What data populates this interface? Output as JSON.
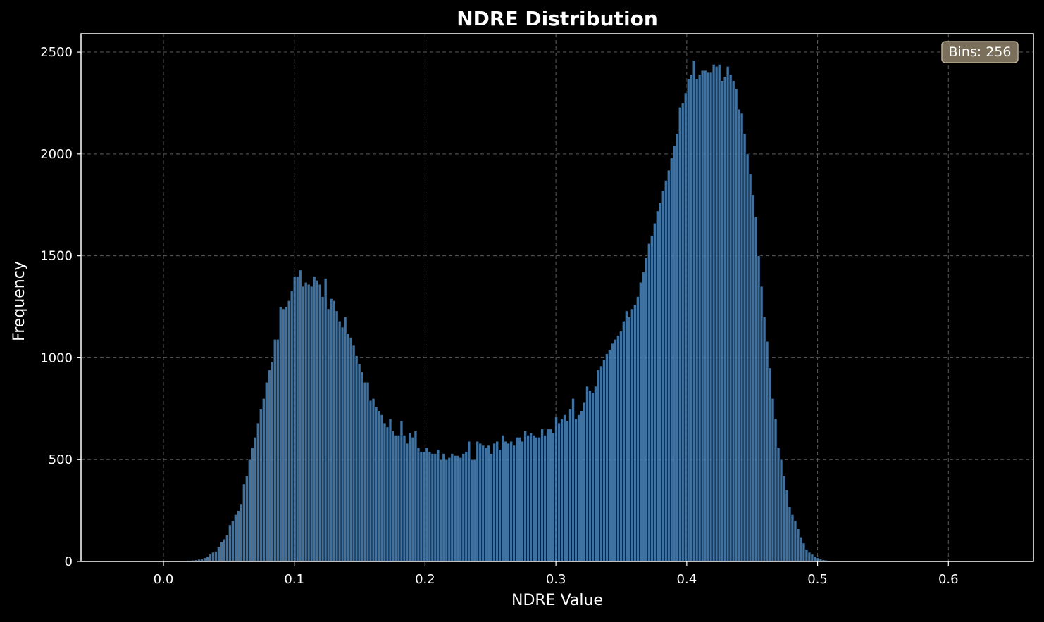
{
  "chart_data": {
    "type": "bar",
    "title": "NDRE Distribution",
    "xlabel": "NDRE Value",
    "ylabel": "Frequency",
    "xlim": [
      -0.063,
      0.665
    ],
    "ylim": [
      0,
      2590
    ],
    "xticks": [
      0.0,
      0.1,
      0.2,
      0.3,
      0.4,
      0.5,
      0.6
    ],
    "xtick_labels": [
      "0.0",
      "0.1",
      "0.2",
      "0.3",
      "0.4",
      "0.5",
      "0.6"
    ],
    "yticks": [
      0,
      500,
      1000,
      1500,
      2000,
      2500
    ],
    "ytick_labels": [
      "0",
      "500",
      "1000",
      "1500",
      "2000",
      "2500"
    ],
    "grid": true,
    "annotation": "Bins: 256",
    "bar_color": "#4f8fc9",
    "bins": 256,
    "x_start": 0.0175,
    "bin_width": 0.00215,
    "values": [
      5,
      5,
      6,
      8,
      10,
      12,
      18,
      25,
      35,
      45,
      50,
      70,
      95,
      110,
      130,
      180,
      200,
      230,
      250,
      280,
      380,
      420,
      500,
      560,
      610,
      680,
      750,
      800,
      880,
      940,
      980,
      1090,
      1090,
      1250,
      1240,
      1250,
      1280,
      1330,
      1400,
      1400,
      1430,
      1350,
      1370,
      1360,
      1350,
      1400,
      1380,
      1360,
      1300,
      1390,
      1240,
      1290,
      1280,
      1230,
      1180,
      1150,
      1200,
      1120,
      1100,
      1060,
      1010,
      970,
      930,
      880,
      880,
      790,
      800,
      760,
      740,
      720,
      680,
      660,
      700,
      640,
      620,
      620,
      690,
      620,
      580,
      630,
      610,
      640,
      560,
      540,
      540,
      560,
      540,
      530,
      530,
      550,
      500,
      530,
      500,
      510,
      530,
      520,
      520,
      510,
      530,
      540,
      590,
      500,
      500,
      590,
      580,
      570,
      560,
      570,
      530,
      580,
      590,
      550,
      620,
      590,
      580,
      590,
      570,
      610,
      610,
      590,
      640,
      620,
      630,
      620,
      610,
      610,
      650,
      620,
      650,
      650,
      630,
      710,
      680,
      700,
      720,
      690,
      750,
      800,
      700,
      720,
      740,
      780,
      860,
      840,
      830,
      860,
      940,
      960,
      990,
      1020,
      1040,
      1070,
      1090,
      1110,
      1130,
      1180,
      1230,
      1200,
      1240,
      1260,
      1300,
      1370,
      1420,
      1490,
      1560,
      1600,
      1660,
      1720,
      1760,
      1820,
      1870,
      1920,
      1980,
      2040,
      2100,
      2230,
      2250,
      2300,
      2370,
      2390,
      2460,
      2370,
      2390,
      2410,
      2410,
      2400,
      2400,
      2440,
      2430,
      2440,
      2360,
      2380,
      2430,
      2390,
      2360,
      2320,
      2220,
      2200,
      2100,
      2000,
      1900,
      1800,
      1690,
      1500,
      1350,
      1200,
      1080,
      950,
      800,
      700,
      560,
      500,
      420,
      350,
      270,
      230,
      200,
      160,
      120,
      90,
      60,
      45,
      35,
      25,
      18,
      12,
      8,
      6,
      4,
      3,
      2,
      2,
      1,
      1,
      1,
      1,
      1,
      1,
      1,
      1,
      1,
      1,
      1,
      1,
      1,
      1,
      1,
      1,
      1,
      1,
      1,
      1,
      1,
      1,
      1,
      1,
      1,
      1,
      1,
      1,
      1,
      1
    ]
  }
}
